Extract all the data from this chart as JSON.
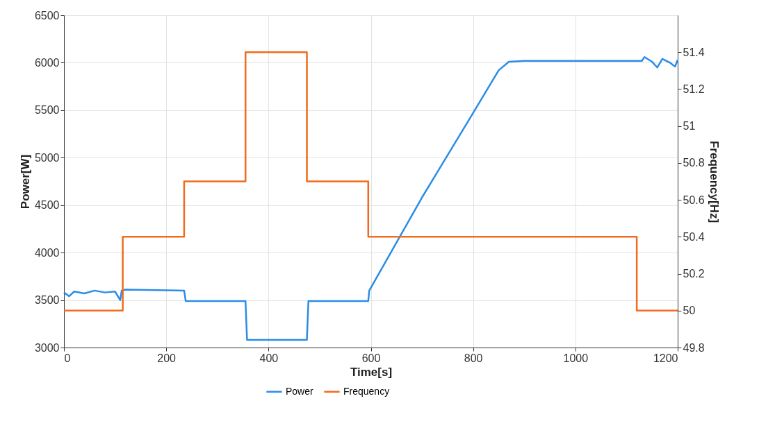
{
  "chart_data": {
    "type": "line",
    "xlabel": "Time[s]",
    "ylabel": "Power[W]",
    "y2label": "Frequency[Hz]",
    "xlim": [
      0,
      1200
    ],
    "xticks": [
      0,
      200,
      400,
      600,
      800,
      1000,
      1200
    ],
    "ylim": [
      3000,
      6500
    ],
    "yticks": [
      3000,
      3500,
      4000,
      4500,
      5000,
      5500,
      6000,
      6500
    ],
    "y2lim": [
      49.8,
      51.6
    ],
    "y2ticks": [
      49.8,
      50,
      50.2,
      50.4,
      50.6,
      50.8,
      51,
      51.2,
      51.4
    ],
    "grid": true,
    "legend": "bottom",
    "line_style": "solid",
    "series": [
      {
        "name": "Power",
        "color": "#2b8ce8",
        "x": [
          0,
          10,
          20,
          40,
          60,
          80,
          100,
          110,
          113,
          120,
          235,
          238,
          355,
          358,
          475,
          478,
          595,
          597,
          700,
          800,
          850,
          870,
          900,
          1000,
          1130,
          1135,
          1150,
          1160,
          1170,
          1185,
          1195,
          1200
        ],
        "values": [
          3580,
          3540,
          3590,
          3570,
          3600,
          3580,
          3590,
          3500,
          3600,
          3610,
          3600,
          3490,
          3490,
          3080,
          3080,
          3490,
          3490,
          3600,
          4580,
          5470,
          5920,
          6010,
          6020,
          6020,
          6020,
          6060,
          6010,
          5950,
          6040,
          6000,
          5960,
          6030
        ]
      },
      {
        "name": "Frequency",
        "type": "step",
        "axis": "y2",
        "color": "#f26a1b",
        "x": [
          0,
          115,
          235,
          355,
          475,
          595,
          1120,
          1200
        ],
        "values": [
          50,
          50.4,
          50.7,
          51.4,
          50.7,
          50.4,
          50,
          50
        ]
      }
    ]
  }
}
